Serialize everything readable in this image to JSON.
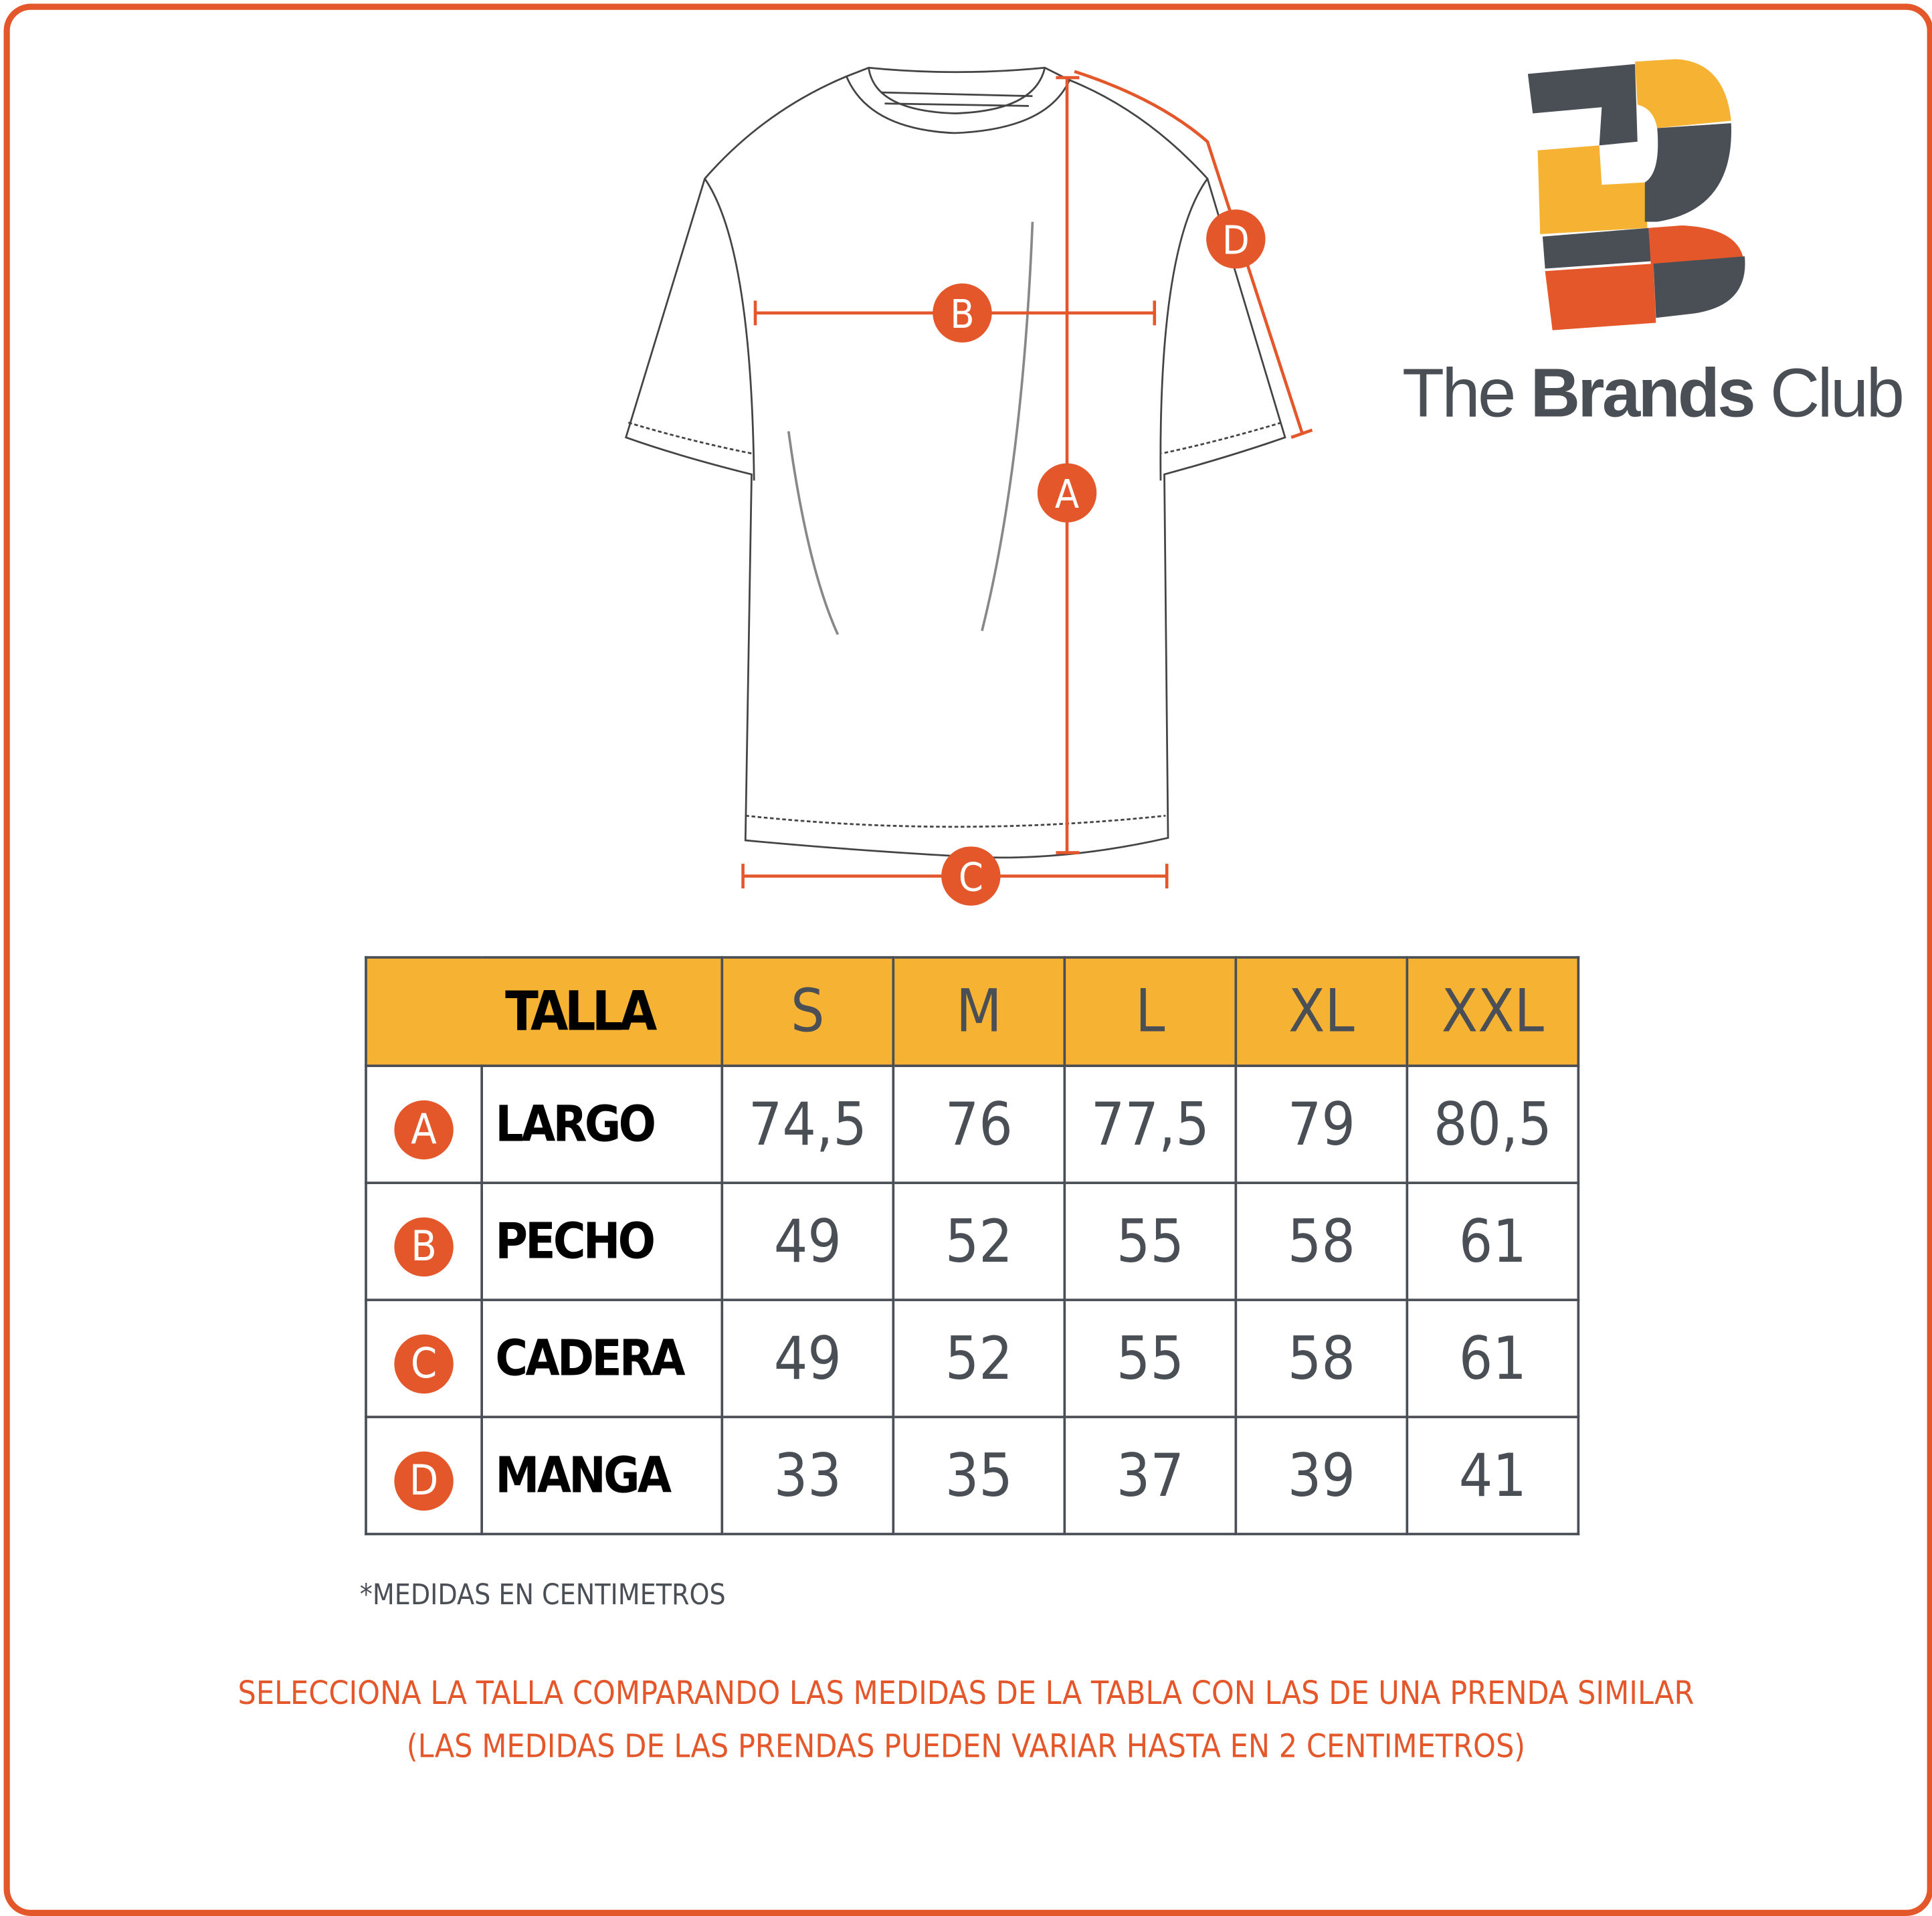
{
  "brand": {
    "name_light": "The",
    "name_bold": "Brands",
    "name_light2": "Club",
    "colors": {
      "orange": "#e4572a",
      "yellow": "#f5b233",
      "gray": "#4a4f56"
    }
  },
  "diagram": {
    "labels": [
      "A",
      "B",
      "C",
      "D"
    ]
  },
  "table": {
    "header_label": "TALLA",
    "sizes": [
      "S",
      "M",
      "L",
      "XL",
      "XXL"
    ],
    "rows": [
      {
        "letter": "A",
        "name": "LARGO",
        "values": [
          "74,5",
          "76",
          "77,5",
          "79",
          "80,5"
        ]
      },
      {
        "letter": "B",
        "name": "PECHO",
        "values": [
          "49",
          "52",
          "55",
          "58",
          "61"
        ]
      },
      {
        "letter": "C",
        "name": "CADERA",
        "values": [
          "49",
          "52",
          "55",
          "58",
          "61"
        ]
      },
      {
        "letter": "D",
        "name": "MANGA",
        "values": [
          "33",
          "35",
          "37",
          "39",
          "41"
        ]
      }
    ]
  },
  "note": "*MEDIDAS EN CENTIMETROS",
  "instructions": {
    "line1": "SELECCIONA LA TALLA COMPARANDO LAS MEDIDAS DE LA TABLA CON LAS DE UNA PRENDA SIMILAR",
    "line2": "(LAS MEDIDAS DE LAS PRENDAS PUEDEN VARIAR HASTA EN 2 CENTIMETROS)"
  }
}
